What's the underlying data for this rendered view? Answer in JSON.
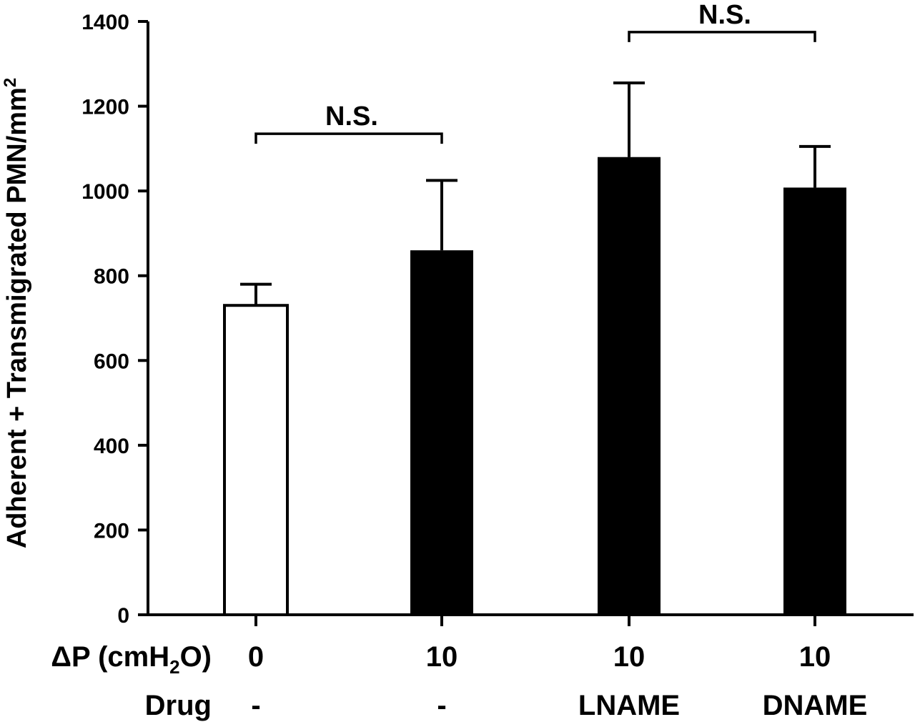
{
  "chart_data": {
    "type": "bar",
    "title": "",
    "ylabel": "Adherent + Transmigrated PMN/mm",
    "ylabel_superscript": "2",
    "ylim": [
      0,
      1400
    ],
    "yticks": [
      "0",
      "200",
      "400",
      "600",
      "800",
      "1000",
      "1200",
      "1400"
    ],
    "x_rows": [
      {
        "label_main": "ΔP (cmH",
        "label_sub": "2",
        "label_tail": "O)",
        "values": [
          "0",
          "10",
          "10",
          "10"
        ]
      },
      {
        "label_main": "Drug",
        "values": [
          "-",
          "-",
          "LNAME",
          "DNAME"
        ]
      }
    ],
    "bars": [
      {
        "value": 730,
        "error": 50,
        "fill": "#ffffff"
      },
      {
        "value": 860,
        "error": 165,
        "fill": "#000000"
      },
      {
        "value": 1080,
        "error": 175,
        "fill": "#000000"
      },
      {
        "value": 1008,
        "error": 97,
        "fill": "#000000"
      }
    ],
    "annotations": [
      {
        "text": "N.S.",
        "from_bar": 0,
        "to_bar": 1,
        "level": 1135
      },
      {
        "text": "N.S.",
        "from_bar": 2,
        "to_bar": 3,
        "level": 1375
      }
    ],
    "grid": false,
    "legend": "none"
  }
}
